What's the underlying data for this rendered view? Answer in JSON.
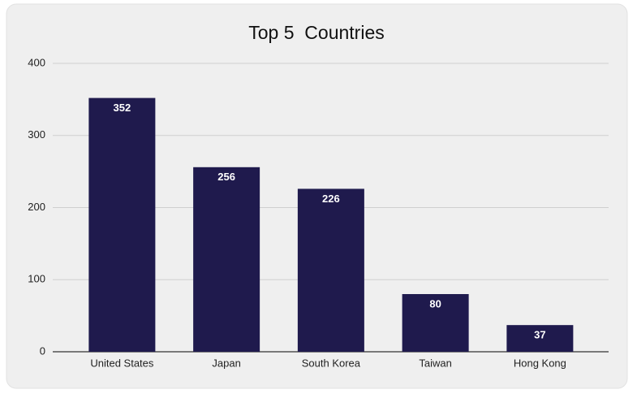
{
  "chart_data": {
    "type": "bar",
    "title": "Top 5  Countries",
    "categories": [
      "United States",
      "Japan",
      "South Korea",
      "Taiwan",
      "Hong Kong"
    ],
    "values": [
      352,
      256,
      226,
      80,
      37
    ],
    "color": "#1f1a4d",
    "ylim": [
      0,
      400
    ],
    "yticks": [
      0,
      100,
      200,
      300,
      400
    ],
    "grid": true
  }
}
